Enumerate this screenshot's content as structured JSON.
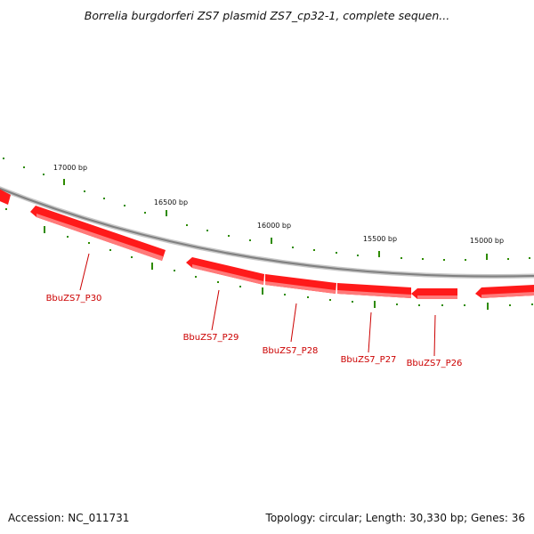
{
  "title": "Borrelia burgdorferi ZS7 plasmid ZS7_cp32-1, complete sequen...",
  "colors": {
    "backbone": "#8a8a8a",
    "gene": "#ff1a1a",
    "gene_label": "#cc0000",
    "tick": "#2e8b00"
  },
  "bp_labels": [
    "17000 bp",
    "16500 bp",
    "16000 bp",
    "15500 bp",
    "15000 bp"
  ],
  "genes": [
    {
      "name": "BbuZS7_P30"
    },
    {
      "name": "BbuZS7_P29"
    },
    {
      "name": "BbuZS7_P28"
    },
    {
      "name": "BbuZS7_P27"
    },
    {
      "name": "BbuZS7_P26"
    }
  ],
  "footer": {
    "accession": "Accession: NC_011731",
    "summary": "Topology: circular; Length: 30,330 bp; Genes: 36"
  }
}
